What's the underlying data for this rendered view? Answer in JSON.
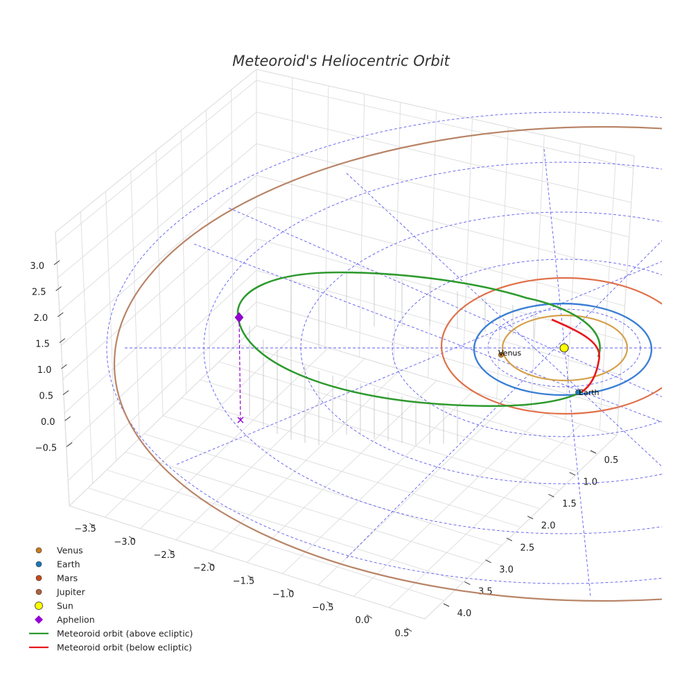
{
  "chart_data": {
    "type": "3d-orbit",
    "title": "Meteoroid's Heliocentric Orbit",
    "z_ticks": [
      "3.0",
      "2.5",
      "2.0",
      "1.5",
      "1.0",
      "0.5",
      "0.0",
      "−0.5"
    ],
    "x_ticks": [
      "−3.5",
      "−3.0",
      "−2.5",
      "−2.0",
      "−1.5",
      "−1.0",
      "−0.5",
      "0.0",
      "0.5"
    ],
    "y_ticks": [
      "0.5",
      "1.0",
      "1.5",
      "2.0",
      "2.5",
      "3.0",
      "3.5",
      "4.0"
    ],
    "planets": [
      {
        "name": "Venus",
        "label": "Venus",
        "orbit_au": 0.72,
        "color": "#d4a04a",
        "marker": "#c77a1e"
      },
      {
        "name": "Earth",
        "label": "Earth",
        "orbit_au": 1.0,
        "color": "#3b7fd4",
        "marker": "#1f77b4"
      },
      {
        "name": "Mars",
        "label": "",
        "orbit_au": 1.52,
        "color": "#e0704a",
        "marker": "#c8491a"
      },
      {
        "name": "Jupiter",
        "label": "",
        "orbit_au": 5.2,
        "color": "#b88467",
        "marker": "#b0603a"
      }
    ],
    "sun": {
      "name": "Sun",
      "color": "#ffff00"
    },
    "aphelion": {
      "name": "Aphelion",
      "color": "#9400d3"
    },
    "meteoroid": {
      "above_label": "Meteoroid orbit (above ecliptic)",
      "below_label": "Meteoroid orbit (below ecliptic)",
      "above_color": "#2e9a2e",
      "below_color": "#e8161c",
      "perihelion_au": 0.55,
      "aphelion_au": 3.4
    },
    "legend": [
      {
        "label": "Venus",
        "kind": "dot",
        "color": "#c77a1e"
      },
      {
        "label": "Earth",
        "kind": "dot",
        "color": "#1f77b4"
      },
      {
        "label": "Mars",
        "kind": "dot",
        "color": "#c8491a"
      },
      {
        "label": "Jupiter",
        "kind": "dot",
        "color": "#b0603a"
      },
      {
        "label": "Sun",
        "kind": "sun",
        "color": "#ffff00"
      },
      {
        "label": "Aphelion",
        "kind": "diamond",
        "color": "#9400d3"
      },
      {
        "label": "Meteoroid orbit (above ecliptic)",
        "kind": "line",
        "color": "#2e9a2e"
      },
      {
        "label": "Meteoroid orbit (below ecliptic)",
        "kind": "line",
        "color": "#e8161c"
      }
    ],
    "grid": true,
    "legend_position": "bottom-left"
  }
}
